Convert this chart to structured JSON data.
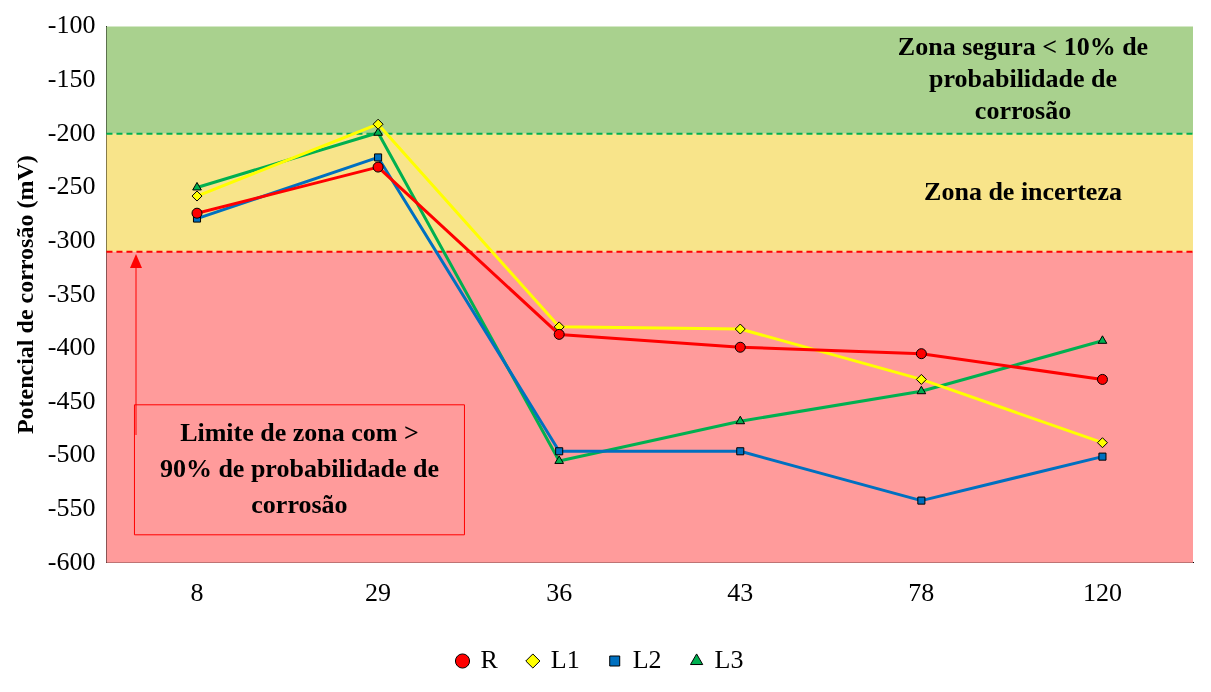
{
  "chart_data": {
    "type": "line",
    "ylabel": "Potencial de corrosão (mV)",
    "categories": [
      "8",
      "29",
      "36",
      "43",
      "78",
      "120"
    ],
    "series": [
      {
        "name": "R",
        "color": "#ff0000",
        "marker": "circle",
        "values": [
          -274,
          -231,
          -387,
          -399,
          -405,
          -429
        ]
      },
      {
        "name": "L1",
        "color": "#ffff00",
        "marker": "diamond",
        "values": [
          -258,
          -191,
          -380,
          -382,
          -429,
          -488
        ]
      },
      {
        "name": "L2",
        "color": "#0070c0",
        "marker": "square",
        "values": [
          -279,
          -222,
          -496,
          -496,
          -542,
          -501
        ]
      },
      {
        "name": "L3",
        "color": "#00b050",
        "marker": "triangle",
        "values": [
          -250,
          -199,
          -505,
          -468,
          -440,
          -393
        ]
      }
    ],
    "ylim": [
      -600,
      -100
    ],
    "yticks": [
      -600,
      -550,
      -500,
      -450,
      -400,
      -350,
      -300,
      -250,
      -200,
      -150,
      -100
    ],
    "bands": [
      {
        "axis": "y",
        "from": -100,
        "to": -200,
        "color": "#a9d18e",
        "label": "Zona segura < 10% de probabilidade de corrosão"
      },
      {
        "axis": "y",
        "from": -200,
        "to": -310,
        "color": "#f8e48a",
        "label": "Zona de incerteza"
      },
      {
        "axis": "y",
        "from": -310,
        "to": -600,
        "color": "#ff9b9b"
      }
    ],
    "ref_lines": [
      {
        "axis": "y",
        "value": -200,
        "color": "#00b050",
        "line_style": "dashed"
      },
      {
        "axis": "y",
        "value": -310,
        "color": "#ff0000",
        "line_style": "dashed"
      }
    ],
    "annotations": [
      "Limite de zona com > 90% de probabilidade de corrosão"
    ],
    "grid": false,
    "legend": "bottom",
    "line_style": "solid"
  }
}
